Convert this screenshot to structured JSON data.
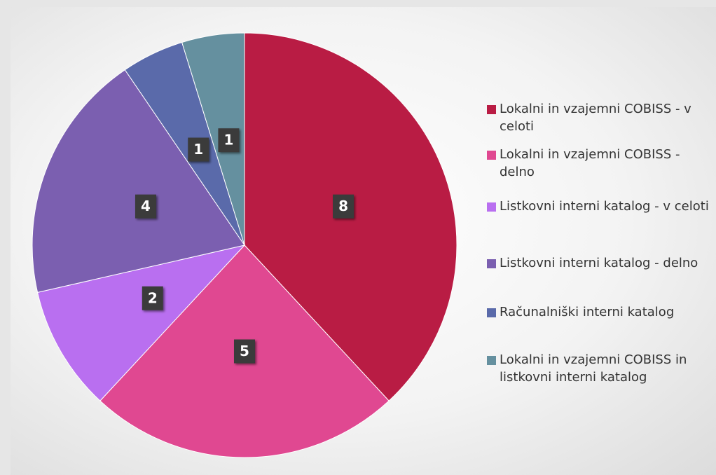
{
  "chart_data": {
    "type": "pie",
    "categories": [
      "Lokalni in vzajemni COBISS - v celoti",
      "Lokalni in vzajemni COBISS - delno",
      "Listkovni interni katalog - v celoti",
      "Listkovni interni katalog - delno",
      "Računalniški interni katalog",
      "Lokalni in vzajemni COBISS in listkovni interni katalog"
    ],
    "values": [
      8,
      5,
      2,
      4,
      1,
      1
    ],
    "colors": [
      "#b91c44",
      "#e04891",
      "#b96ff0",
      "#7b5fb0",
      "#5a6aaa",
      "#65909f"
    ],
    "legend": "right"
  }
}
